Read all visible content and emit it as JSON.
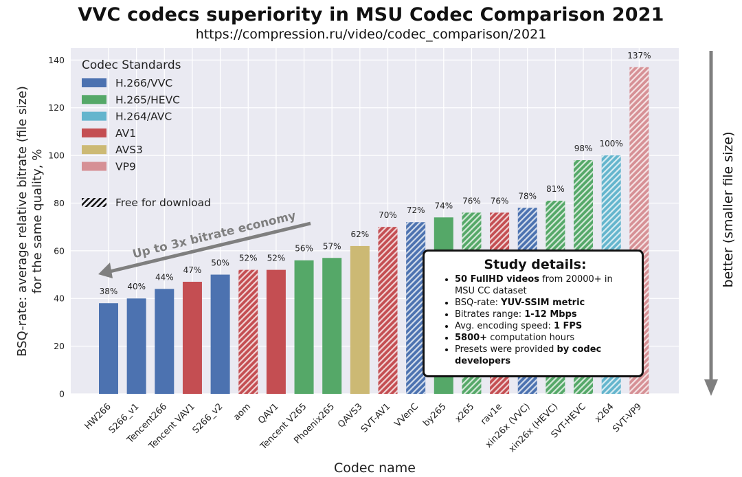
{
  "title": "VVC codecs superiority in MSU Codec Comparison 2021",
  "subtitle": "https://compression.ru/video/codec_comparison/2021",
  "colors": {
    "H.266/VVC": "#4c72b0",
    "H.265/HEVC": "#55a868",
    "H.264/AVC": "#64b5cd",
    "AV1": "#c44e52",
    "AVS3": "#ccb974",
    "VP9": "#d69095",
    "background": "#eaeaf2",
    "arrow": "#7f7f7f"
  },
  "legend": {
    "title": "Codec Standards",
    "items": [
      "H.266/VVC",
      "H.265/HEVC",
      "H.264/AVC",
      "AV1",
      "AVS3",
      "VP9"
    ],
    "hatch_label": "Free for download",
    "placement": "top-left"
  },
  "annotations": {
    "economy": "Up to 3x bitrate economy",
    "better": "better  (smaller  file size)"
  },
  "details": {
    "title": "Study details:",
    "items": [
      {
        "bold": "50 FullHD videos",
        "text": " from 20000+ in MSU CC dataset"
      },
      {
        "pre": "BSQ-rate: ",
        "bold": "YUV-SSIM metric"
      },
      {
        "pre": "Bitrates range: ",
        "bold": "1-12 Mbps"
      },
      {
        "pre": "Avg. encoding speed: ",
        "bold": "1 FPS"
      },
      {
        "bold": "5800+",
        "text": " computation hours"
      },
      {
        "pre": "Presets were provided ",
        "bold": "by codec developers"
      }
    ]
  },
  "chart_data": {
    "type": "bar",
    "title": "VVC codecs superiority in MSU Codec Comparison 2021",
    "subtitle": "https://compression.ru/video/codec_comparison/2021",
    "xlabel": "Codec name",
    "ylabel": [
      "BSQ-rate: average relative bitrate (file size)",
      "for the same quality, %"
    ],
    "ylim": [
      0,
      145
    ],
    "yticks": [
      0,
      20,
      40,
      60,
      80,
      100,
      120,
      140
    ],
    "grid": true,
    "categories": [
      "HW266",
      "S266_v1",
      "Tencent266",
      "Tencent VAV1",
      "S266_v2",
      "aom",
      "QAV1",
      "Tencent V265",
      "Phoenix265",
      "QAVS3",
      "SVT-AV1",
      "VVenC",
      "by265",
      "x265",
      "rav1e",
      "xin26x (VVC)",
      "xin26x (HEVC)",
      "SVT-HEVC",
      "x264",
      "SVT-VP9"
    ],
    "values": [
      38,
      40,
      44,
      47,
      50,
      52,
      52,
      56,
      57,
      62,
      70,
      72,
      74,
      76,
      76,
      78,
      81,
      98,
      100,
      137
    ],
    "value_labels": [
      "38%",
      "40%",
      "44%",
      "47%",
      "50%",
      "52%",
      "52%",
      "56%",
      "57%",
      "62%",
      "70%",
      "72%",
      "74%",
      "76%",
      "76%",
      "78%",
      "81%",
      "98%",
      "100%",
      "137%"
    ],
    "standards": [
      "H.266/VVC",
      "H.266/VVC",
      "H.266/VVC",
      "AV1",
      "H.266/VVC",
      "AV1",
      "AV1",
      "H.265/HEVC",
      "H.265/HEVC",
      "AVS3",
      "AV1",
      "H.266/VVC",
      "H.265/HEVC",
      "H.265/HEVC",
      "AV1",
      "H.266/VVC",
      "H.265/HEVC",
      "H.265/HEVC",
      "H.264/AVC",
      "VP9"
    ],
    "free_for_download": [
      false,
      false,
      false,
      false,
      false,
      true,
      false,
      false,
      false,
      false,
      true,
      true,
      false,
      true,
      true,
      true,
      true,
      true,
      true,
      true
    ]
  }
}
